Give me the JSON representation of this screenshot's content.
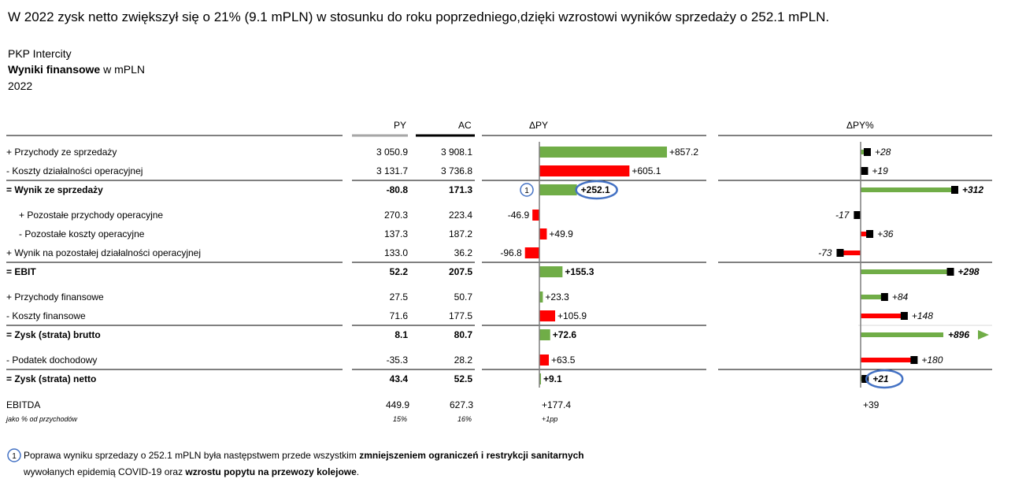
{
  "headline": "W 2022 zysk netto zwiększył się o 21% (9.1 mPLN) w stosunku do roku poprzedniego,dzięki wzrostowi wyników sprzedaży o 252.1 mPLN.",
  "company": "PKP Intercity",
  "measure_bold": "Wyniki finansowe",
  "measure_unit": " w mPLN",
  "year": "2022",
  "columns": {
    "py": "PY",
    "ac": "AC",
    "dpy": "ΔPY",
    "dpypct": "ΔPY%"
  },
  "colors": {
    "positive": "#70AD47",
    "negative": "#FF0000",
    "highlight": "#4472C4",
    "axis": "#7f7f7f",
    "py_bar": "#a6a6a6"
  },
  "chart_data": {
    "type": "table",
    "rows": [
      {
        "label": "+ Przychody ze sprzedaży",
        "py": "3 050.9",
        "ac": "3 908.1",
        "dpy": 857.2,
        "dpy_label": "+857.2",
        "dpct": 28,
        "dpct_label": "+28",
        "dpy_good": true,
        "bold": false,
        "indent": false
      },
      {
        "label": "- Koszty działalności operacyjnej",
        "py": "3 131.7",
        "ac": "3 736.8",
        "dpy": 605.1,
        "dpy_label": "+605.1",
        "dpct": 19,
        "dpct_label": "+19",
        "dpy_good": false,
        "bold": false,
        "indent": false
      },
      {
        "label": "= Wynik ze sprzedaży",
        "py": "-80.8",
        "ac": "171.3",
        "dpy": 252.1,
        "dpy_label": "+252.1",
        "dpct": 312,
        "dpct_label": "+312",
        "dpy_good": true,
        "bold": true,
        "indent": false
      },
      {
        "label": "+ Pozostałe przychody operacyjne",
        "py": "270.3",
        "ac": "223.4",
        "dpy": -46.9,
        "dpy_label": "-46.9",
        "dpct": -17,
        "dpct_label": "-17",
        "dpy_good": false,
        "bold": false,
        "indent": true
      },
      {
        "label": "-  Pozostałe koszty operacyjne",
        "py": "137.3",
        "ac": "187.2",
        "dpy": 49.9,
        "dpy_label": "+49.9",
        "dpct": 36,
        "dpct_label": "+36",
        "dpy_good": false,
        "bold": false,
        "indent": true
      },
      {
        "label": "+ Wynik na pozostałej działalności operacyjnej",
        "py": "133.0",
        "ac": "36.2",
        "dpy": -96.8,
        "dpy_label": "-96.8",
        "dpct": -73,
        "dpct_label": "-73",
        "dpy_good": false,
        "bold": false,
        "indent": false
      },
      {
        "label": "= EBIT",
        "py": "52.2",
        "ac": "207.5",
        "dpy": 155.3,
        "dpy_label": "+155.3",
        "dpct": 298,
        "dpct_label": "+298",
        "dpy_good": true,
        "bold": true,
        "indent": false
      },
      {
        "label": "+ Przychody finansowe",
        "py": "27.5",
        "ac": "50.7",
        "dpy": 23.3,
        "dpy_label": "+23.3",
        "dpct": 84,
        "dpct_label": "+84",
        "dpy_good": true,
        "bold": false,
        "indent": false
      },
      {
        "label": "- Koszty finansowe",
        "py": "71.6",
        "ac": "177.5",
        "dpy": 105.9,
        "dpy_label": "+105.9",
        "dpct": 148,
        "dpct_label": "+148",
        "dpy_good": false,
        "bold": false,
        "indent": false
      },
      {
        "label": "= Zysk (strata) brutto",
        "py": "8.1",
        "ac": "80.7",
        "dpy": 72.6,
        "dpy_label": "+72.6",
        "dpct": 896,
        "dpct_label": "+896",
        "dpy_good": true,
        "bold": true,
        "indent": false
      },
      {
        "label": "- Podatek dochodowy",
        "py": "-35.3",
        "ac": "28.2",
        "dpy": 63.5,
        "dpy_label": "+63.5",
        "dpct": 180,
        "dpct_label": "+180",
        "dpy_good": false,
        "bold": false,
        "indent": false
      },
      {
        "label": "= Zysk (strata) netto",
        "py": "43.4",
        "ac": "52.5",
        "dpy": 9.1,
        "dpy_label": "+9.1",
        "dpct": 21,
        "dpct_label": "+21",
        "dpy_good": true,
        "bold": true,
        "indent": false
      }
    ],
    "ebitda": {
      "label": "EBITDA",
      "py": "449.9",
      "ac": "627.3",
      "dpy": "+177.4",
      "dpct": "+39"
    },
    "margin": {
      "label": "jako % od przychodów",
      "py": "15%",
      "ac": "16%",
      "dpy": "+1pp"
    },
    "annotation_marker": "1",
    "annotated_dpy_row": 2,
    "annotated_pct_row": 11,
    "clipped_pct_row": 9
  },
  "footnote": {
    "marker": "1",
    "line1_pre": "Poprawa wyniku sprzedazy o 252.1 mPLN była następstwem przede wszystkim ",
    "line1_bold": "zmniejszeniem ograniczeń i restrykcji sanitarnych",
    "line2_pre": "wywołanych epidemią COVID-19 oraz ",
    "line2_bold": "wzrostu popytu na przewozy kolejowe",
    "line2_post": "."
  }
}
